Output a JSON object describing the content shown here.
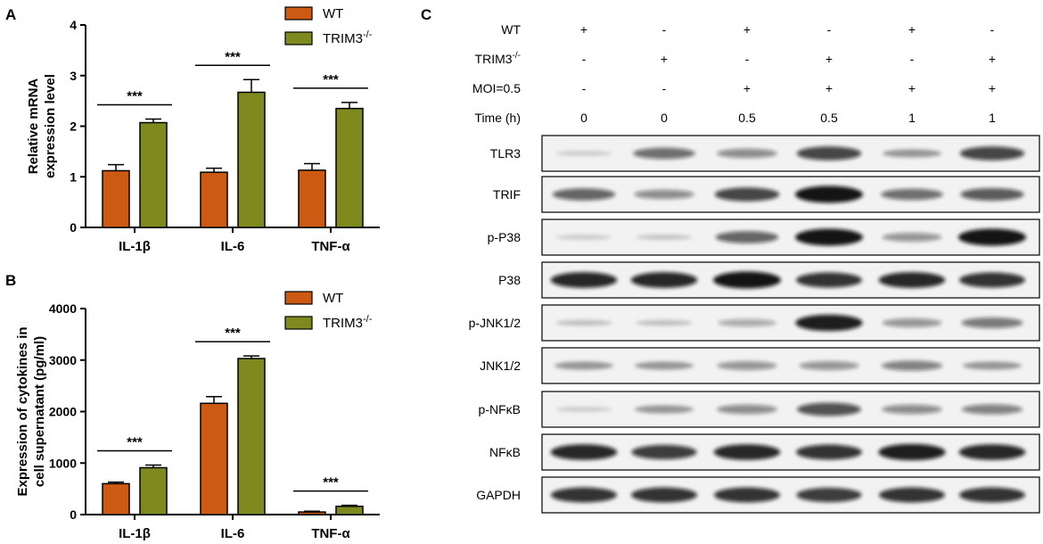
{
  "panel_labels": {
    "a": "A",
    "b": "B",
    "c": "C"
  },
  "colors": {
    "wt": "#cc5a12",
    "trim3": "#7e8a1e",
    "axis": "#000000",
    "blot_band": "#111111",
    "blot_bg": "#f2f2f2"
  },
  "chart_data": [
    {
      "panel": "A",
      "type": "bar",
      "title": "",
      "ylabel_lines": [
        "Relative  mRNA",
        "expression level"
      ],
      "categories": [
        "IL-1β",
        "IL-6",
        "TNF-α"
      ],
      "ylim": [
        0,
        4
      ],
      "yticks": [
        0,
        1,
        2,
        3,
        4
      ],
      "legend": {
        "position": "top-right"
      },
      "series": [
        {
          "name": "WT",
          "name_sup": "",
          "values": [
            1.12,
            1.09,
            1.13
          ],
          "errors": [
            0.12,
            0.08,
            0.13
          ]
        },
        {
          "name": "TRIM3",
          "name_sup": "-/-",
          "values": [
            2.07,
            2.67,
            2.35
          ],
          "errors": [
            0.07,
            0.25,
            0.12
          ]
        }
      ],
      "significance": [
        "***",
        "***",
        "***"
      ]
    },
    {
      "panel": "B",
      "type": "bar",
      "title": "",
      "ylabel_lines": [
        "Expression of cytokines in",
        "cell supernatant (pg/ml)"
      ],
      "categories": [
        "IL-1β",
        "IL-6",
        "TNF-α"
      ],
      "ylim": [
        0,
        4000
      ],
      "yticks": [
        0,
        1000,
        2000,
        3000,
        4000
      ],
      "legend": {
        "position": "top-right"
      },
      "series": [
        {
          "name": "WT",
          "name_sup": "",
          "values": [
            600,
            2160,
            50
          ],
          "errors": [
            30,
            130,
            15
          ]
        },
        {
          "name": "TRIM3",
          "name_sup": "-/-",
          "values": [
            910,
            3030,
            160
          ],
          "errors": [
            50,
            50,
            20
          ]
        }
      ],
      "significance": [
        "***",
        "***",
        "***"
      ]
    }
  ],
  "western_blot": {
    "conditions": [
      {
        "label": "WT",
        "sup": "",
        "values": [
          "+",
          "-",
          "+",
          "-",
          "+",
          "-"
        ]
      },
      {
        "label": "TRIM3",
        "sup": "-/-",
        "values": [
          "-",
          "+",
          "-",
          "+",
          "-",
          "+"
        ]
      },
      {
        "label": "MOI=0.5",
        "sup": "",
        "values": [
          "-",
          "-",
          "+",
          "+",
          "+",
          "+"
        ]
      },
      {
        "label": "Time (h)",
        "sup": "",
        "values": [
          "0",
          "0",
          "0.5",
          "0.5",
          "1",
          "1"
        ]
      }
    ],
    "bands": [
      {
        "label": "TLR3",
        "intensity": [
          0.05,
          0.55,
          0.4,
          0.75,
          0.3,
          0.75
        ]
      },
      {
        "label": "TRIF",
        "intensity": [
          0.6,
          0.4,
          0.75,
          1.0,
          0.55,
          0.65
        ]
      },
      {
        "label": "p-P38",
        "intensity": [
          0.05,
          0.08,
          0.6,
          1.0,
          0.35,
          1.0
        ]
      },
      {
        "label": "P38",
        "intensity": [
          0.9,
          0.9,
          1.0,
          0.85,
          0.9,
          0.85
        ]
      },
      {
        "label": "p-JNK1/2",
        "intensity": [
          0.1,
          0.1,
          0.25,
          0.95,
          0.35,
          0.5
        ]
      },
      {
        "label": "JNK1/2",
        "intensity": [
          0.3,
          0.3,
          0.35,
          0.35,
          0.45,
          0.3
        ]
      },
      {
        "label": "p-NFκB",
        "intensity": [
          0.05,
          0.3,
          0.4,
          0.7,
          0.4,
          0.45
        ]
      },
      {
        "label": "NFκB",
        "intensity": [
          0.9,
          0.8,
          0.9,
          0.85,
          0.95,
          0.9
        ]
      },
      {
        "label": "GAPDH",
        "intensity": [
          0.85,
          0.85,
          0.85,
          0.8,
          0.85,
          0.85
        ]
      }
    ]
  }
}
